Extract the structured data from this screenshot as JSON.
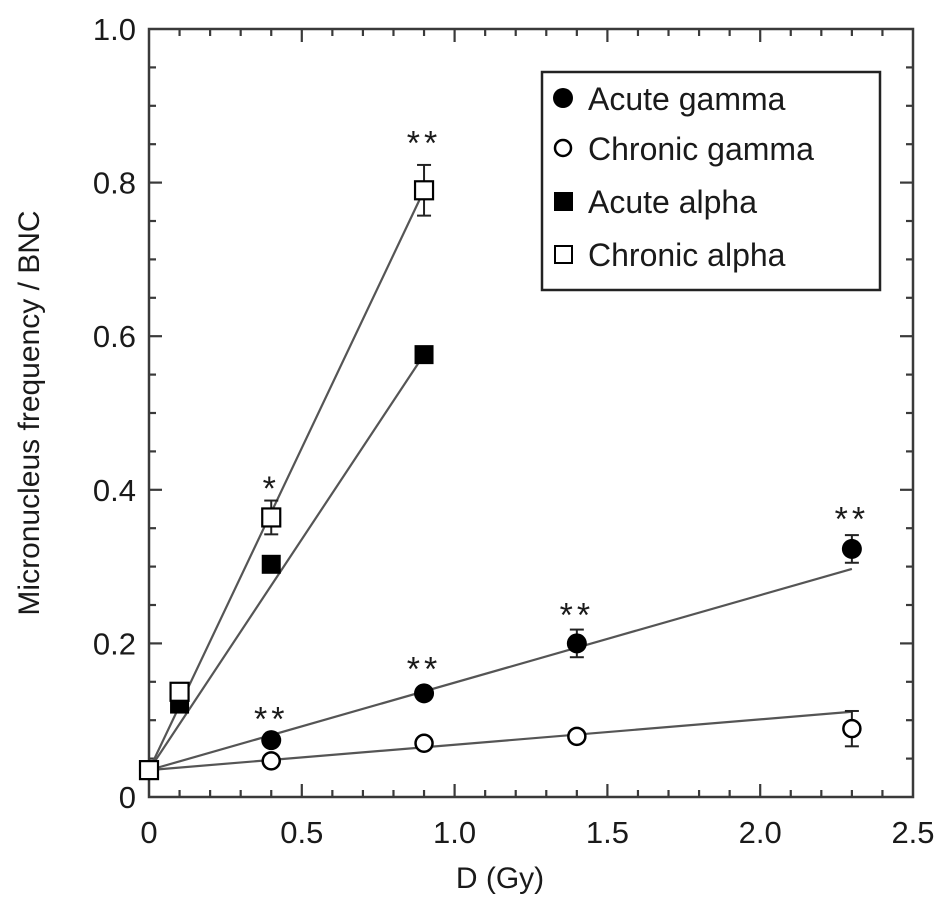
{
  "chart_data": {
    "type": "scatter",
    "title": "",
    "xlabel": "D (Gy)",
    "ylabel": "Micronucleus frequency / BNC",
    "xlim": [
      0,
      2.5
    ],
    "ylim": [
      0,
      1.0
    ],
    "x_ticks": [
      "0",
      "0.5",
      "1.0",
      "1.5",
      "2.0",
      "2.5"
    ],
    "x_tick_values": [
      0,
      0.5,
      1.0,
      1.5,
      2.0,
      2.5
    ],
    "y_ticks": [
      "0",
      "0.2",
      "0.4",
      "0.6",
      "0.8",
      "1.0"
    ],
    "y_tick_values": [
      0,
      0.2,
      0.4,
      0.6,
      0.8,
      1.0
    ],
    "grid": false,
    "legend_position": "upper right",
    "series": [
      {
        "name": "Acute gamma",
        "marker": "filled-circle",
        "x": [
          0,
          0.4,
          0.9,
          1.4,
          2.3
        ],
        "y": [
          0.035,
          0.074,
          0.135,
          0.2,
          0.323
        ],
        "yerr": [
          0.004,
          0.005,
          0.005,
          0.018,
          0.018
        ],
        "fit_line": {
          "x": [
            0,
            2.3
          ],
          "y": [
            0.035,
            0.297
          ]
        }
      },
      {
        "name": "Chronic gamma",
        "marker": "open-circle",
        "x": [
          0,
          0.4,
          0.9,
          1.4,
          2.3
        ],
        "y": [
          0.035,
          0.047,
          0.07,
          0.079,
          0.089
        ],
        "yerr": [
          0.004,
          0.004,
          0.004,
          0.005,
          0.023
        ],
        "fit_line": {
          "x": [
            0,
            2.3
          ],
          "y": [
            0.035,
            0.111
          ]
        }
      },
      {
        "name": "Acute alpha",
        "marker": "filled-square",
        "x": [
          0,
          0.1,
          0.4,
          0.9
        ],
        "y": [
          0.035,
          0.121,
          0.303,
          0.576
        ],
        "yerr": [
          0.004,
          0.006,
          0.008,
          0.008
        ],
        "fit_line": {
          "x": [
            0,
            0.9
          ],
          "y": [
            0.035,
            0.576
          ]
        }
      },
      {
        "name": "Chronic alpha",
        "marker": "open-square",
        "x": [
          0,
          0.1,
          0.4,
          0.9
        ],
        "y": [
          0.035,
          0.137,
          0.364,
          0.79
        ],
        "yerr": [
          0.004,
          0.008,
          0.022,
          0.033
        ],
        "fit_line": {
          "x": [
            0,
            0.9
          ],
          "y": [
            0.035,
            0.79
          ]
        }
      }
    ],
    "annotations": [
      {
        "text": "**",
        "x": 0.4,
        "y": 0.105,
        "series": "Acute gamma"
      },
      {
        "text": "**",
        "x": 0.9,
        "y": 0.17,
        "series": "Acute gamma"
      },
      {
        "text": "**",
        "x": 1.4,
        "y": 0.24,
        "series": "Acute gamma"
      },
      {
        "text": "**",
        "x": 2.3,
        "y": 0.365,
        "series": "Acute gamma"
      },
      {
        "text": "*",
        "x": 0.4,
        "y": 0.405,
        "series": "Chronic alpha"
      },
      {
        "text": "**",
        "x": 0.9,
        "y": 0.855,
        "series": "Chronic alpha"
      }
    ]
  },
  "legend": {
    "items": [
      {
        "label": "Acute gamma",
        "marker": "filled-circle"
      },
      {
        "label": "Chronic gamma",
        "marker": "open-circle"
      },
      {
        "label": "Acute alpha",
        "marker": "filled-square"
      },
      {
        "label": "Chronic alpha",
        "marker": "open-square"
      }
    ]
  },
  "colors": {
    "axis": "#3a3a3a",
    "fit_line": "#555555",
    "marker": "#000000",
    "text": "#1a1a1a"
  }
}
